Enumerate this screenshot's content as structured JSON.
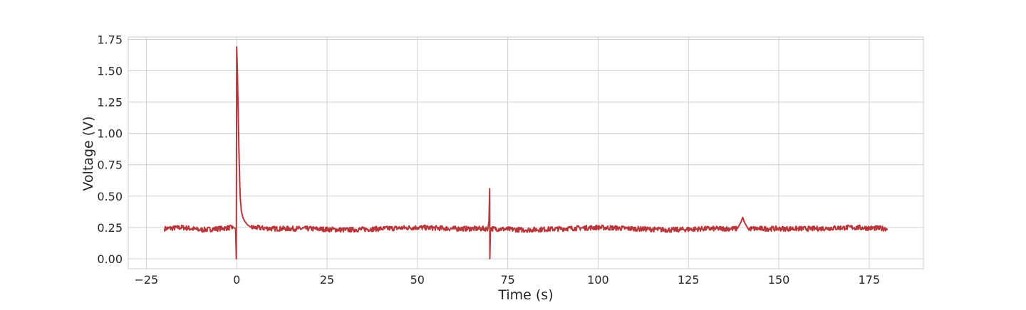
{
  "chart_data": {
    "type": "line",
    "title": "",
    "xlabel": "Time (s)",
    "ylabel": "Voltage (V)",
    "xlim": [
      -30,
      190
    ],
    "ylim": [
      -0.08,
      1.77
    ],
    "xticks": [
      -25,
      0,
      25,
      50,
      75,
      100,
      125,
      150,
      175
    ],
    "xtick_labels": [
      "−25",
      "0",
      "25",
      "50",
      "75",
      "100",
      "125",
      "150",
      "175"
    ],
    "yticks": [
      0.0,
      0.25,
      0.5,
      0.75,
      1.0,
      1.25,
      1.5,
      1.75
    ],
    "ytick_labels": [
      "0.00",
      "0.25",
      "0.50",
      "0.75",
      "1.00",
      "1.25",
      "1.50",
      "1.75"
    ],
    "grid": true,
    "colors": {
      "series": "#b8373a",
      "grid": "#cccccc",
      "spine": "#cccccc"
    },
    "series": [
      {
        "baseline": 0.24,
        "noise_amplitude": 0.02,
        "points": [
          [
            -20.0,
            0.24
          ],
          [
            -15.0,
            0.25
          ],
          [
            -10.0,
            0.23
          ],
          [
            -5.0,
            0.24
          ],
          [
            -1.0,
            0.25
          ],
          [
            -0.3,
            0.24
          ],
          [
            -0.1,
            0.0
          ],
          [
            0.0,
            1.69
          ],
          [
            0.2,
            1.5
          ],
          [
            0.4,
            1.2
          ],
          [
            0.6,
            0.9
          ],
          [
            0.8,
            0.65
          ],
          [
            1.0,
            0.48
          ],
          [
            1.3,
            0.38
          ],
          [
            1.7,
            0.33
          ],
          [
            2.2,
            0.3
          ],
          [
            3.0,
            0.27
          ],
          [
            4.0,
            0.25
          ],
          [
            10.0,
            0.24
          ],
          [
            20.0,
            0.24
          ],
          [
            30.0,
            0.23
          ],
          [
            40.0,
            0.24
          ],
          [
            50.0,
            0.25
          ],
          [
            60.0,
            0.24
          ],
          [
            69.5,
            0.24
          ],
          [
            69.8,
            0.3
          ],
          [
            70.0,
            0.56
          ],
          [
            70.05,
            0.0
          ],
          [
            70.2,
            0.24
          ],
          [
            80.0,
            0.23
          ],
          [
            90.0,
            0.24
          ],
          [
            100.0,
            0.25
          ],
          [
            110.0,
            0.24
          ],
          [
            120.0,
            0.23
          ],
          [
            130.0,
            0.24
          ],
          [
            138.5,
            0.24
          ],
          [
            139.5,
            0.29
          ],
          [
            140.0,
            0.33
          ],
          [
            140.5,
            0.29
          ],
          [
            141.5,
            0.24
          ],
          [
            150.0,
            0.24
          ],
          [
            160.0,
            0.24
          ],
          [
            170.0,
            0.25
          ],
          [
            180.0,
            0.24
          ]
        ]
      }
    ]
  }
}
